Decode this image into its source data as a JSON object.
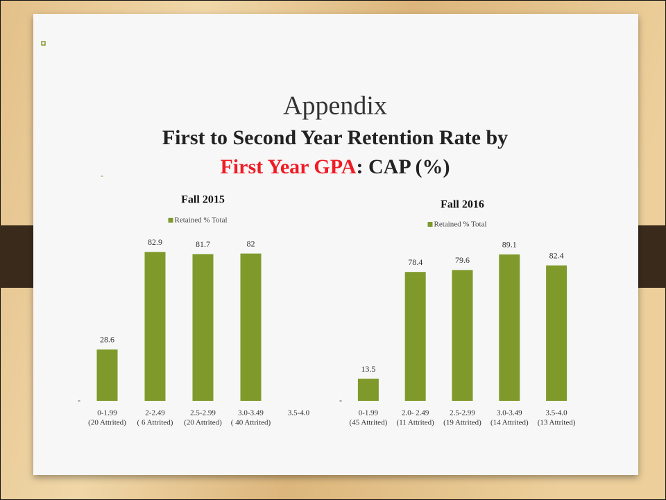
{
  "slide": {
    "title": "Appendix",
    "subtitle_parts": [
      {
        "text": "First to Second Year Retention Rate by",
        "color": "#222222"
      },
      {
        "text": "First Year GPA",
        "color": "#ee1c25"
      },
      {
        "text": ": CAP (%)",
        "color": "#222222"
      }
    ],
    "note": "-"
  },
  "chart_data": [
    {
      "type": "bar",
      "title": "Fall 2015",
      "legend": "top",
      "series": [
        {
          "name": "Retained % Total",
          "color": "#7f9a2b",
          "values": [
            28.6,
            82.9,
            81.7,
            82,
            null
          ]
        }
      ],
      "categories": [
        "0-1.99",
        "2-2.49",
        "2.5-2.99",
        "3.0-3.49",
        "3.5-4.0"
      ],
      "category_sublabels": [
        "(20 Attrited)",
        "( 6 Attrited)",
        "(20 Attrited)",
        "( 40 Attrited)",
        null
      ],
      "ylim": [
        0,
        100
      ],
      "yticks": [
        {
          "value": 0,
          "label": "-"
        }
      ]
    },
    {
      "type": "bar",
      "title": "Fall 2016",
      "legend": "top",
      "series": [
        {
          "name": "Retained % Total",
          "color": "#7f9a2b",
          "values": [
            13.5,
            78.4,
            79.6,
            89.1,
            82.4
          ]
        }
      ],
      "categories": [
        "0-1.99",
        "2.0- 2.49",
        "2.5-2.99",
        "3.0-3.49",
        "3.5-4.0"
      ],
      "category_sublabels": [
        "(45 Attrited)",
        "(11 Attrited)",
        "(19 Attrited)",
        "(14 Attrited)",
        "(13 Attrited)"
      ],
      "ylim": [
        0,
        100
      ],
      "yticks": [
        {
          "value": 0,
          "label": "-"
        }
      ]
    }
  ]
}
